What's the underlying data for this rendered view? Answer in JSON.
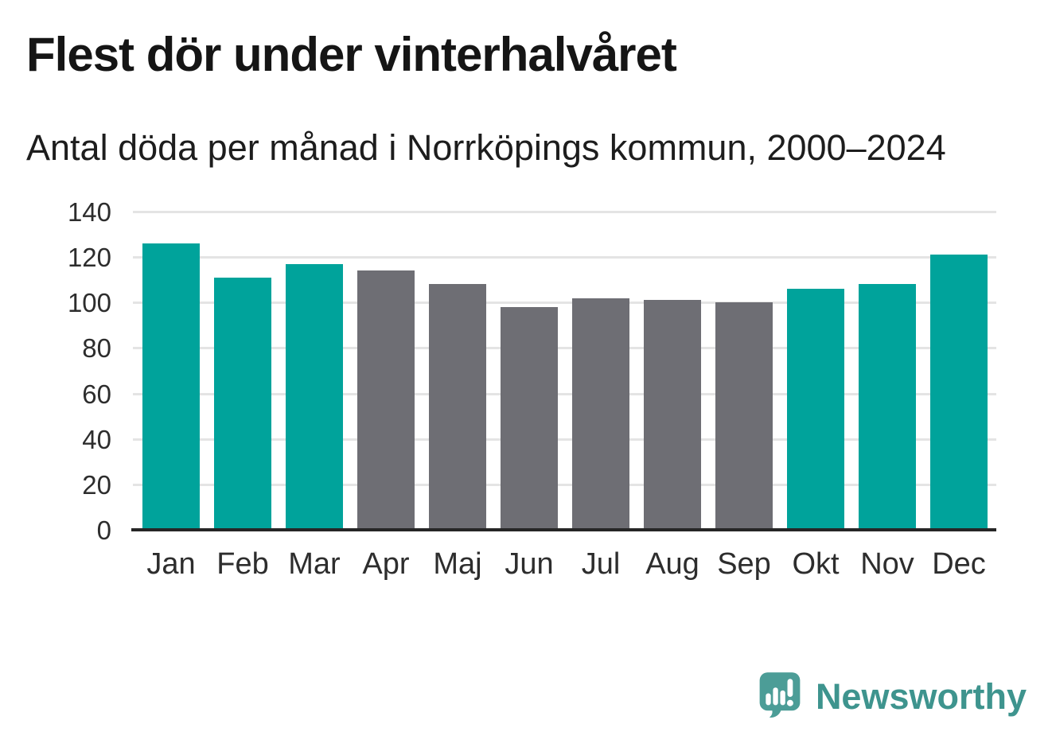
{
  "header": {
    "title": "Flest dör under vinterhalvåret",
    "subtitle": "Antal döda per månad i Norrköpings kommun, 2000–2024"
  },
  "chart_data": {
    "type": "bar",
    "title": "Flest dör under vinterhalvåret",
    "subtitle": "Antal döda per månad i Norrköpings kommun, 2000–2024",
    "categories": [
      "Jan",
      "Feb",
      "Mar",
      "Apr",
      "Maj",
      "Jun",
      "Jul",
      "Aug",
      "Sep",
      "Okt",
      "Nov",
      "Dec"
    ],
    "values": [
      126,
      111,
      117,
      114,
      108,
      98,
      102,
      101,
      100,
      106,
      108,
      121
    ],
    "xlabel": "",
    "ylabel": "",
    "ylim": [
      0,
      140
    ],
    "yticks": [
      0,
      20,
      40,
      60,
      80,
      100,
      120,
      140
    ],
    "grid": true,
    "legend": "none",
    "colors": {
      "winter_months": "#00a39b",
      "summer_months": "#6e6e74"
    },
    "bar_color_keys": [
      "winter_months",
      "winter_months",
      "winter_months",
      "summer_months",
      "summer_months",
      "summer_months",
      "summer_months",
      "summer_months",
      "summer_months",
      "winter_months",
      "winter_months",
      "winter_months"
    ],
    "gridline_color": "#e4e4e4",
    "axis_line_color": "#262626",
    "tick_label_color": "#2d2d2d"
  },
  "footer": {
    "brand": "Newsworthy",
    "brand_text_color": "#3e948e",
    "brand_icon": "newsworthy-speech-bubble-chart-icon",
    "brand_icon_color": "#4c9d97"
  }
}
